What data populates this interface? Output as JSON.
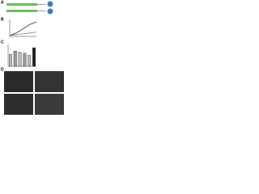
{
  "panel_labels": [
    "A",
    "B",
    "C",
    "D"
  ],
  "chart_data": [
    {
      "type": "line",
      "x": [
        0,
        1,
        2,
        3,
        4
      ],
      "xlim": [
        0,
        4
      ],
      "ylim": [
        0,
        100
      ],
      "series": [
        {
          "color": "#222222",
          "values": [
            5,
            20,
            45,
            70,
            85
          ]
        },
        {
          "color": "#888888",
          "values": [
            5,
            10,
            15,
            20,
            25
          ]
        }
      ]
    },
    {
      "type": "bar",
      "categories": [
        null,
        null,
        null,
        null,
        null,
        null
      ],
      "ylim": [
        0,
        100
      ],
      "values": [
        55,
        70,
        65,
        60,
        50,
        85
      ],
      "colors": [
        "#bbbbbb",
        "#999999",
        "#bbbbbb",
        "#999999",
        "#bbbbbb",
        "#222222"
      ]
    }
  ]
}
